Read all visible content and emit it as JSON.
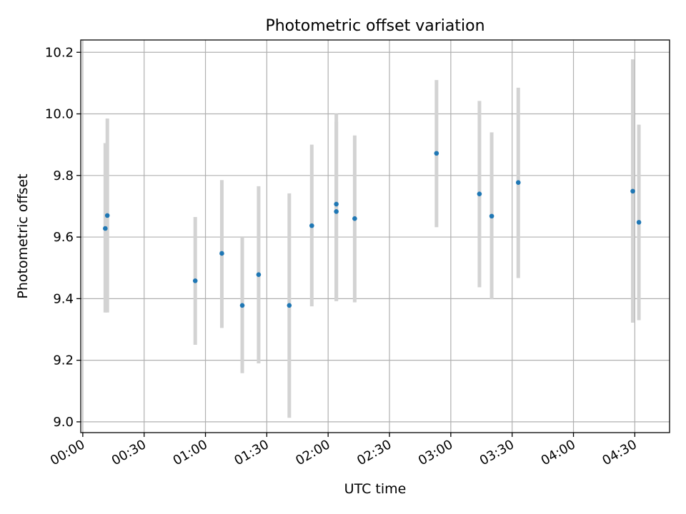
{
  "chart_data": {
    "type": "scatter",
    "title": "Photometric offset variation",
    "xlabel": "UTC time",
    "ylabel": "Photometric offset",
    "x_unit": "UTC time of day",
    "xlim": [
      "-00:01",
      "04:47"
    ],
    "ylim": [
      8.965,
      10.24
    ],
    "x_ticks": [
      "00:00",
      "00:30",
      "01:00",
      "01:30",
      "02:00",
      "02:30",
      "03:00",
      "03:30",
      "04:00",
      "04:30"
    ],
    "y_ticks": [
      "9.0",
      "9.2",
      "9.4",
      "9.6",
      "9.8",
      "10.0",
      "10.2"
    ],
    "grid": true,
    "colors": {
      "point": "#1f77b4",
      "errorbar": "#d3d3d3",
      "grid": "#b0b0b0"
    },
    "series": [
      {
        "points": [
          {
            "x": "00:11",
            "y": 9.628,
            "err_low": 9.355,
            "err_high": 9.905
          },
          {
            "x": "00:12",
            "y": 9.67,
            "err_low": 9.355,
            "err_high": 9.985
          },
          {
            "x": "00:55",
            "y": 9.458,
            "err_low": 9.25,
            "err_high": 9.665
          },
          {
            "x": "01:08",
            "y": 9.547,
            "err_low": 9.305,
            "err_high": 9.785
          },
          {
            "x": "01:18",
            "y": 9.378,
            "err_low": 9.158,
            "err_high": 9.6
          },
          {
            "x": "01:26",
            "y": 9.478,
            "err_low": 9.19,
            "err_high": 9.765
          },
          {
            "x": "01:41",
            "y": 9.378,
            "err_low": 9.013,
            "err_high": 9.742
          },
          {
            "x": "01:52",
            "y": 9.637,
            "err_low": 9.375,
            "err_high": 9.9
          },
          {
            "x": "02:04",
            "y": 9.707,
            "err_low": 9.392,
            "err_high": 10.0
          },
          {
            "x": "02:04",
            "y": 9.683,
            "err_low": 9.392,
            "err_high": 9.975
          },
          {
            "x": "02:13",
            "y": 9.66,
            "err_low": 9.388,
            "err_high": 9.93
          },
          {
            "x": "02:53",
            "y": 9.872,
            "err_low": 9.632,
            "err_high": 10.11
          },
          {
            "x": "03:14",
            "y": 9.74,
            "err_low": 9.437,
            "err_high": 10.042
          },
          {
            "x": "03:20",
            "y": 9.668,
            "err_low": 9.398,
            "err_high": 9.94
          },
          {
            "x": "03:33",
            "y": 9.777,
            "err_low": 9.467,
            "err_high": 10.085
          },
          {
            "x": "04:29",
            "y": 9.749,
            "err_low": 9.322,
            "err_high": 10.177
          },
          {
            "x": "04:32",
            "y": 9.648,
            "err_low": 9.33,
            "err_high": 9.965
          }
        ]
      }
    ]
  }
}
